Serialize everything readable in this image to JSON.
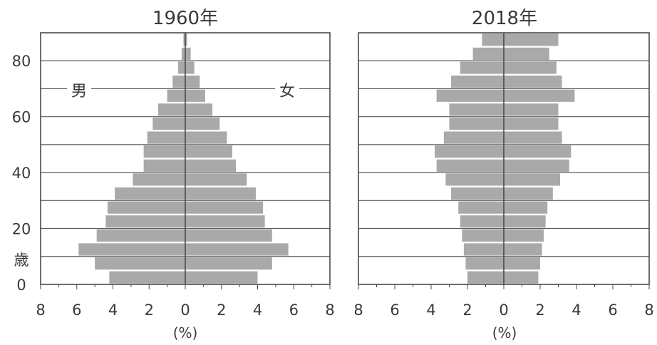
{
  "chart_data": [
    {
      "type": "bar",
      "orientation": "horizontal",
      "title": "1960年",
      "age_unit_label": "歳",
      "x_unit_label": "(%)",
      "xlim": [
        -8,
        8
      ],
      "ylim": [
        0,
        90
      ],
      "x_ticks": [
        8,
        6,
        4,
        2,
        0,
        2,
        4,
        6,
        8
      ],
      "y_ticks": [
        0,
        20,
        40,
        60,
        80
      ],
      "grid": true,
      "male_label": "男",
      "female_label": "女",
      "categories": [
        "0-4",
        "5-9",
        "10-14",
        "15-19",
        "20-24",
        "25-29",
        "30-34",
        "35-39",
        "40-44",
        "45-49",
        "50-54",
        "55-59",
        "60-64",
        "65-69",
        "70-74",
        "75-79",
        "80-84",
        "85-89"
      ],
      "series": [
        {
          "name": "男",
          "values": [
            4.2,
            5.0,
            5.9,
            4.9,
            4.4,
            4.3,
            3.9,
            2.9,
            2.3,
            2.3,
            2.1,
            1.8,
            1.5,
            1.0,
            0.7,
            0.4,
            0.2,
            0.1
          ]
        },
        {
          "name": "女",
          "values": [
            4.0,
            4.8,
            5.7,
            4.8,
            4.4,
            4.3,
            3.9,
            3.4,
            2.8,
            2.6,
            2.3,
            1.9,
            1.5,
            1.1,
            0.8,
            0.5,
            0.3,
            0.1
          ]
        }
      ]
    },
    {
      "type": "bar",
      "orientation": "horizontal",
      "title": "2018年",
      "x_unit_label": "(%)",
      "xlim": [
        -8,
        8
      ],
      "ylim": [
        0,
        90
      ],
      "x_ticks": [
        8,
        6,
        4,
        2,
        0,
        2,
        4,
        6,
        8
      ],
      "grid": true,
      "categories": [
        "0-4",
        "5-9",
        "10-14",
        "15-19",
        "20-24",
        "25-29",
        "30-34",
        "35-39",
        "40-44",
        "45-49",
        "50-54",
        "55-59",
        "60-64",
        "65-69",
        "70-74",
        "75-79",
        "80-84",
        "85-89"
      ],
      "series": [
        {
          "name": "男",
          "values": [
            2.0,
            2.1,
            2.2,
            2.3,
            2.4,
            2.5,
            2.9,
            3.2,
            3.7,
            3.8,
            3.3,
            3.0,
            3.0,
            3.7,
            2.9,
            2.4,
            1.7,
            1.2
          ]
        },
        {
          "name": "女",
          "values": [
            1.9,
            2.0,
            2.1,
            2.2,
            2.3,
            2.4,
            2.7,
            3.1,
            3.6,
            3.7,
            3.2,
            3.0,
            3.0,
            3.9,
            3.2,
            2.9,
            2.5,
            3.0
          ]
        }
      ]
    }
  ],
  "colors": {
    "bar": "#a9a9a9",
    "frame": "#4a4a4a",
    "grid": "#5a5a5a",
    "text": "#3a3a3a"
  }
}
